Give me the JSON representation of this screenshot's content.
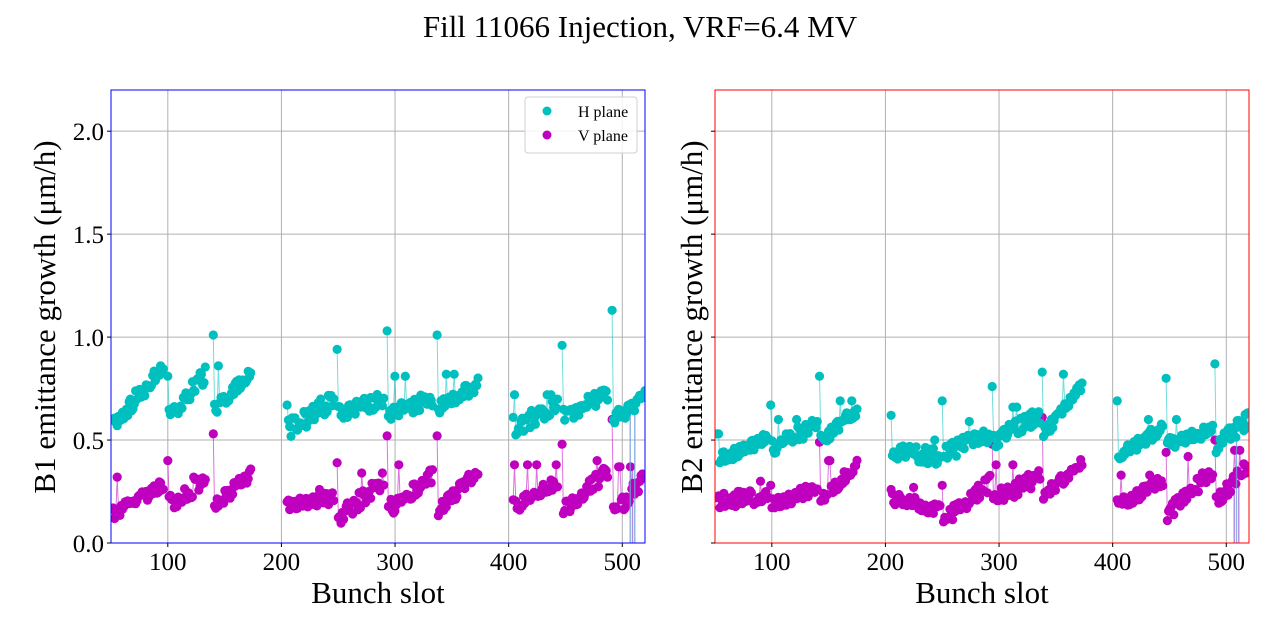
{
  "chart_data": {
    "suptitle": "Fill 11066 Injection, VRF=6.4 MV",
    "type": "scatter",
    "legend": {
      "placement": "top-right",
      "entries": [
        {
          "label": "H plane",
          "color": "#00bfbf"
        },
        {
          "label": "V plane",
          "color": "#bf00bf"
        }
      ]
    },
    "panels": [
      {
        "id": "B1",
        "frame_color": "#0000ff",
        "ylabel": "B1 emittance growth (μm/h)",
        "xlabel": "Bunch slot",
        "xlim": [
          50,
          520
        ],
        "ylim": [
          0.0,
          2.2
        ],
        "xticks": [
          100,
          200,
          300,
          400,
          500
        ],
        "xtick_labels": [
          "100",
          "200",
          "300",
          "400",
          "500"
        ],
        "yticks": [
          0.0,
          0.5,
          1.0,
          1.5,
          2.0
        ],
        "ytick_labels": [
          "0.0",
          "0.5",
          "1.0",
          "1.5",
          "2.0"
        ],
        "show_ytick_labels": true,
        "grid": true,
        "show_legend": true,
        "trains": [
          {
            "start": 52,
            "end": 96,
            "H": {
              "first": 0.6,
              "from": 0.58,
              "to": 0.85,
              "spike": 0.91,
              "noise": 0.04
            },
            "V": {
              "first": 0.17,
              "from": 0.14,
              "to": 0.28,
              "spike": 0.32,
              "noise": 0.03
            }
          },
          {
            "start": 100,
            "end": 133,
            "H": {
              "first": 0.81,
              "from": 0.61,
              "to": 0.82,
              "spike": 0.9,
              "noise": 0.04
            },
            "V": {
              "first": 0.4,
              "from": 0.19,
              "to": 0.3,
              "spike": 0.32,
              "noise": 0.04
            }
          },
          {
            "start": 140,
            "end": 173,
            "H": {
              "first": 1.01,
              "from": 0.64,
              "to": 0.83,
              "spike": 0.86,
              "noise": 0.03
            },
            "V": {
              "first": 0.53,
              "from": 0.18,
              "to": 0.33,
              "spike": 0.36,
              "noise": 0.03
            }
          },
          {
            "start": 205,
            "end": 246,
            "H": {
              "first": 0.67,
              "from": 0.55,
              "to": 0.7,
              "spike": 0.76,
              "noise": 0.05
            },
            "V": {
              "first": 0.2,
              "from": 0.18,
              "to": 0.22,
              "spike": 0.26,
              "noise": 0.03
            }
          },
          {
            "start": 249,
            "end": 290,
            "H": {
              "first": 0.94,
              "from": 0.63,
              "to": 0.7,
              "spike": 0.79,
              "noise": 0.04
            },
            "V": {
              "first": 0.39,
              "from": 0.12,
              "to": 0.3,
              "spike": 0.34,
              "noise": 0.04
            }
          },
          {
            "start": 293,
            "end": 333,
            "H": {
              "first": 1.03,
              "from": 0.62,
              "to": 0.7,
              "spike": 0.81,
              "noise": 0.04
            },
            "V": {
              "first": 0.52,
              "from": 0.16,
              "to": 0.33,
              "spike": 0.38,
              "noise": 0.04
            }
          },
          {
            "start": 337,
            "end": 373,
            "H": {
              "first": 1.01,
              "from": 0.66,
              "to": 0.78,
              "spike": 0.82,
              "noise": 0.04
            },
            "V": {
              "first": 0.52,
              "from": 0.15,
              "to": 0.35,
              "spike": 0.45,
              "noise": 0.03
            }
          },
          {
            "start": 404,
            "end": 443,
            "H": {
              "first": 0.61,
              "from": 0.55,
              "to": 0.68,
              "spike": 0.72,
              "noise": 0.04
            },
            "V": {
              "first": 0.21,
              "from": 0.17,
              "to": 0.3,
              "spike": 0.38,
              "noise": 0.03
            }
          },
          {
            "start": 447,
            "end": 487,
            "H": {
              "first": 0.96,
              "from": 0.61,
              "to": 0.72,
              "spike": 0.77,
              "noise": 0.04
            },
            "V": {
              "first": 0.48,
              "from": 0.15,
              "to": 0.35,
              "spike": 0.4,
              "noise": 0.04
            }
          },
          {
            "start": 491,
            "end": 520,
            "H": {
              "first": 1.13,
              "from": 0.6,
              "to": 0.7,
              "spike": 0.72,
              "noise": 0.04
            },
            "V": {
              "first": 0.6,
              "from": 0.13,
              "to": 0.32,
              "spike": 0.37,
              "noise": 0.04
            }
          }
        ],
        "dips": [
          {
            "slot": 507,
            "plane": "H",
            "to": 0.0
          },
          {
            "slot": 509,
            "plane": "V",
            "to": 0.0
          },
          {
            "slot": 511,
            "plane": "H",
            "to": 0.0
          }
        ]
      },
      {
        "id": "B2",
        "frame_color": "#ff0000",
        "ylabel": "B2 emittance growth (μm/h)",
        "xlabel": "Bunch slot",
        "xlim": [
          50,
          520
        ],
        "ylim": [
          0.0,
          2.2
        ],
        "xticks": [
          100,
          200,
          300,
          400,
          500
        ],
        "xtick_labels": [
          "100",
          "200",
          "300",
          "400",
          "500"
        ],
        "yticks": [
          0.0,
          0.5,
          1.0,
          1.5,
          2.0
        ],
        "ytick_labels": [
          "",
          "",
          "",
          "",
          ""
        ],
        "show_ytick_labels": false,
        "grid": true,
        "show_legend": false,
        "trains": [
          {
            "start": 52,
            "end": 97,
            "H": {
              "first": 0.53,
              "from": 0.4,
              "to": 0.51,
              "spike": 0.53,
              "noise": 0.03
            },
            "V": {
              "first": 0.22,
              "from": 0.21,
              "to": 0.23,
              "spike": 0.3,
              "noise": 0.04
            }
          },
          {
            "start": 99,
            "end": 140,
            "H": {
              "first": 0.67,
              "from": 0.46,
              "to": 0.58,
              "spike": 0.6,
              "noise": 0.04
            },
            "V": {
              "first": 0.28,
              "from": 0.18,
              "to": 0.27,
              "spike": 0.3,
              "noise": 0.03
            }
          },
          {
            "start": 142,
            "end": 175,
            "H": {
              "first": 0.81,
              "from": 0.49,
              "to": 0.65,
              "spike": 0.69,
              "noise": 0.03
            },
            "V": {
              "first": 0.49,
              "from": 0.2,
              "to": 0.38,
              "spike": 0.4,
              "noise": 0.03
            }
          },
          {
            "start": 205,
            "end": 248,
            "H": {
              "first": 0.62,
              "from": 0.44,
              "to": 0.42,
              "spike": 0.5,
              "noise": 0.04
            },
            "V": {
              "first": 0.26,
              "from": 0.22,
              "to": 0.16,
              "spike": 0.27,
              "noise": 0.03
            }
          },
          {
            "start": 250,
            "end": 292,
            "H": {
              "first": 0.69,
              "from": 0.43,
              "to": 0.53,
              "spike": 0.59,
              "noise": 0.04
            },
            "V": {
              "first": 0.28,
              "from": 0.1,
              "to": 0.29,
              "spike": 0.33,
              "noise": 0.04
            }
          },
          {
            "start": 294,
            "end": 336,
            "H": {
              "first": 0.76,
              "from": 0.49,
              "to": 0.62,
              "spike": 0.66,
              "noise": 0.04
            },
            "V": {
              "first": 0.48,
              "from": 0.21,
              "to": 0.32,
              "spike": 0.38,
              "noise": 0.04
            }
          },
          {
            "start": 338,
            "end": 373,
            "H": {
              "first": 0.83,
              "from": 0.52,
              "to": 0.76,
              "spike": 0.82,
              "noise": 0.03
            },
            "V": {
              "first": 0.61,
              "from": 0.22,
              "to": 0.4,
              "spike": 0.46,
              "noise": 0.03
            }
          },
          {
            "start": 404,
            "end": 444,
            "H": {
              "first": 0.69,
              "from": 0.42,
              "to": 0.56,
              "spike": 0.6,
              "noise": 0.03
            },
            "V": {
              "first": 0.21,
              "from": 0.18,
              "to": 0.3,
              "spike": 0.33,
              "noise": 0.03
            }
          },
          {
            "start": 447,
            "end": 488,
            "H": {
              "first": 0.8,
              "from": 0.48,
              "to": 0.55,
              "spike": 0.6,
              "noise": 0.03
            },
            "V": {
              "first": 0.44,
              "from": 0.14,
              "to": 0.35,
              "spike": 0.42,
              "noise": 0.04
            }
          },
          {
            "start": 490,
            "end": 520,
            "H": {
              "first": 0.87,
              "from": 0.47,
              "to": 0.6,
              "spike": 0.68,
              "noise": 0.04
            },
            "V": {
              "first": 0.5,
              "from": 0.2,
              "to": 0.38,
              "spike": 0.45,
              "noise": 0.04
            }
          }
        ],
        "dips": [
          {
            "slot": 507,
            "plane": "V",
            "to": 0.0
          },
          {
            "slot": 509,
            "plane": "H",
            "to": 0.0
          },
          {
            "slot": 511,
            "plane": "V",
            "to": 0.0
          }
        ]
      }
    ]
  }
}
